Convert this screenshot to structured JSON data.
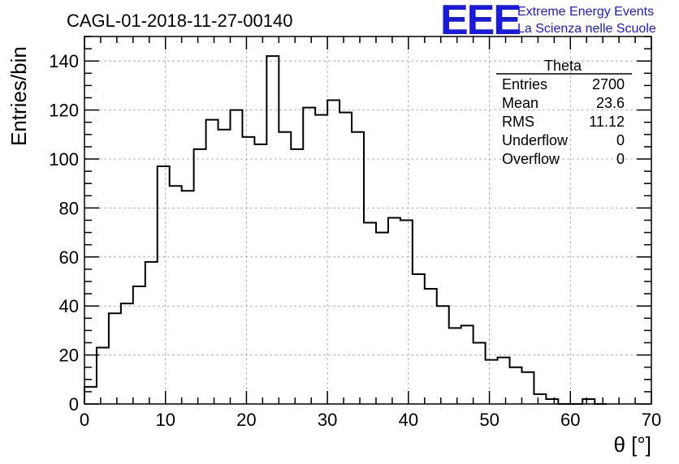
{
  "header": {
    "run_title": "CAGL-01-2018-11-27-00140",
    "logo_text": "EEE",
    "logo_line1": "Extreme Energy Events",
    "logo_line2": "La Scienza nelle Scuole"
  },
  "stats": {
    "title": "Theta",
    "rows": [
      {
        "label": "Entries",
        "value": "2700"
      },
      {
        "label": "Mean",
        "value": "23.6"
      },
      {
        "label": "RMS",
        "value": "11.12"
      },
      {
        "label": "Underflow",
        "value": "0"
      },
      {
        "label": "Overflow",
        "value": "0"
      }
    ]
  },
  "chart_data": {
    "type": "bar",
    "title": "CAGL-01-2018-11-27-00140",
    "xlabel": "θ [°]",
    "ylabel": "Entries/bin",
    "xlim": [
      0,
      70
    ],
    "ylim": [
      0,
      150
    ],
    "bin_width": 1.5,
    "grid": true,
    "x_ticks": [
      0,
      10,
      20,
      30,
      40,
      50,
      60,
      70
    ],
    "y_ticks": [
      0,
      20,
      40,
      60,
      80,
      100,
      120,
      140
    ],
    "bin_edges_start": 0,
    "values": [
      7,
      23,
      37,
      41,
      48,
      58,
      97,
      89,
      87,
      104,
      116,
      112,
      120,
      109,
      106,
      142,
      111,
      104,
      121,
      118,
      124,
      119,
      111,
      74,
      70,
      76,
      75,
      53,
      47,
      40,
      31,
      32,
      25,
      18,
      19,
      15,
      13,
      4,
      2,
      0,
      0,
      2,
      0
    ],
    "style": {
      "line_color": "#000000",
      "logo_color": "#1a1adf"
    }
  }
}
